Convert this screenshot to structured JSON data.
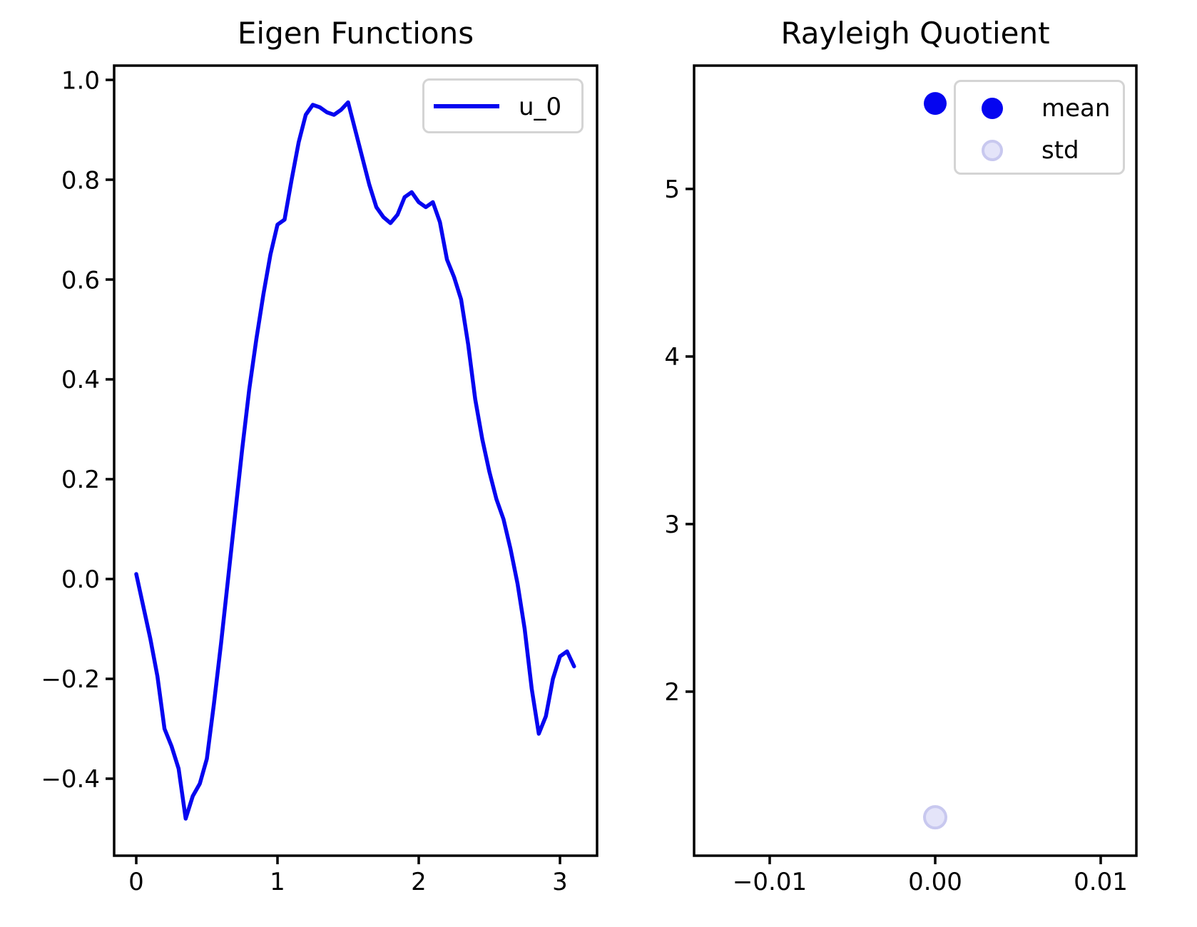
{
  "colors": {
    "line_blue": "#0505f0",
    "mean_fill": "#0505f0",
    "std_fill": "#e4e4f9",
    "std_edge": "#c8c8ef",
    "axis": "#000000",
    "legend_border": "#d4d4d4",
    "text": "#000000",
    "background": "#ffffff"
  },
  "left_plot": {
    "title": "Eigen Functions",
    "legend": {
      "entries": [
        {
          "label": "u_0",
          "marker": "line"
        }
      ]
    }
  },
  "right_plot": {
    "title": "Rayleigh Quotient",
    "legend": {
      "entries": [
        {
          "label": "mean",
          "marker": "solid-dot"
        },
        {
          "label": "std",
          "marker": "faint-dot"
        }
      ]
    }
  },
  "chart_data": [
    {
      "type": "line",
      "title": "Eigen Functions",
      "xlabel": "",
      "ylabel": "",
      "xlim": [
        -0.1566,
        3.2626
      ],
      "ylim": [
        -0.5543,
        1.0286
      ],
      "grid": false,
      "legend_position": "upper right",
      "xticks": [
        0,
        1,
        2,
        3
      ],
      "xtick_labels": [
        "0",
        "1",
        "2",
        "3"
      ],
      "yticks": [
        1.0,
        0.8,
        0.6,
        0.4,
        0.2,
        0.0,
        -0.2,
        -0.4
      ],
      "ytick_labels": [
        "1.0",
        "0.8",
        "0.6",
        "0.4",
        "0.2",
        "0.0",
        "−0.2",
        "−0.4"
      ],
      "series": [
        {
          "name": "u_0",
          "color": "#0505f0",
          "line_width": 5.5,
          "x": [
            0.0,
            0.05,
            0.1,
            0.15,
            0.2,
            0.25,
            0.3,
            0.35,
            0.4,
            0.45,
            0.5,
            0.55,
            0.6,
            0.65,
            0.7,
            0.75,
            0.8,
            0.85,
            0.9,
            0.95,
            1.0,
            1.05,
            1.1,
            1.15,
            1.2,
            1.25,
            1.3,
            1.35,
            1.4,
            1.45,
            1.5,
            1.55,
            1.6,
            1.65,
            1.7,
            1.75,
            1.8,
            1.85,
            1.9,
            1.95,
            2.0,
            2.05,
            2.1,
            2.15,
            2.2,
            2.25,
            2.3,
            2.35,
            2.4,
            2.45,
            2.5,
            2.55,
            2.6,
            2.65,
            2.7,
            2.75,
            2.8,
            2.85,
            2.9,
            2.95,
            3.0,
            3.05,
            3.1
          ],
          "y": [
            0.01,
            -0.055,
            -0.12,
            -0.195,
            -0.3,
            -0.335,
            -0.38,
            -0.48,
            -0.435,
            -0.41,
            -0.36,
            -0.25,
            -0.13,
            0.0,
            0.13,
            0.26,
            0.38,
            0.48,
            0.57,
            0.65,
            0.71,
            0.72,
            0.8,
            0.875,
            0.93,
            0.95,
            0.945,
            0.935,
            0.93,
            0.94,
            0.955,
            0.9,
            0.845,
            0.79,
            0.745,
            0.725,
            0.713,
            0.73,
            0.765,
            0.775,
            0.755,
            0.745,
            0.755,
            0.715,
            0.64,
            0.605,
            0.56,
            0.47,
            0.36,
            0.28,
            0.215,
            0.16,
            0.12,
            0.06,
            -0.01,
            -0.1,
            -0.22,
            -0.31,
            -0.275,
            -0.2,
            -0.155,
            -0.145,
            -0.175
          ]
        }
      ]
    },
    {
      "type": "scatter",
      "title": "Rayleigh Quotient",
      "xlabel": "",
      "ylabel": "",
      "xlim": [
        -0.014569,
        0.012155
      ],
      "ylim": [
        1.021,
        5.736
      ],
      "grid": false,
      "legend_position": "upper right",
      "xticks": [
        -0.01,
        0.0,
        0.01
      ],
      "xtick_labels": [
        "−0.01",
        "0.00",
        "0.01"
      ],
      "yticks": [
        2,
        3,
        4,
        5
      ],
      "ytick_labels": [
        "2",
        "3",
        "4",
        "5"
      ],
      "series": [
        {
          "name": "mean",
          "x": [
            0.0
          ],
          "y": [
            5.51
          ],
          "marker": "circle",
          "radius": 16,
          "fill": "#0505f0",
          "edge": "#0505f0",
          "edge_width": 0
        },
        {
          "name": "std",
          "x": [
            0.0
          ],
          "y": [
            1.25
          ],
          "marker": "circle",
          "radius": 15,
          "fill": "#e4e4f9",
          "edge": "#c8c8ef",
          "edge_width": 4
        }
      ]
    }
  ]
}
